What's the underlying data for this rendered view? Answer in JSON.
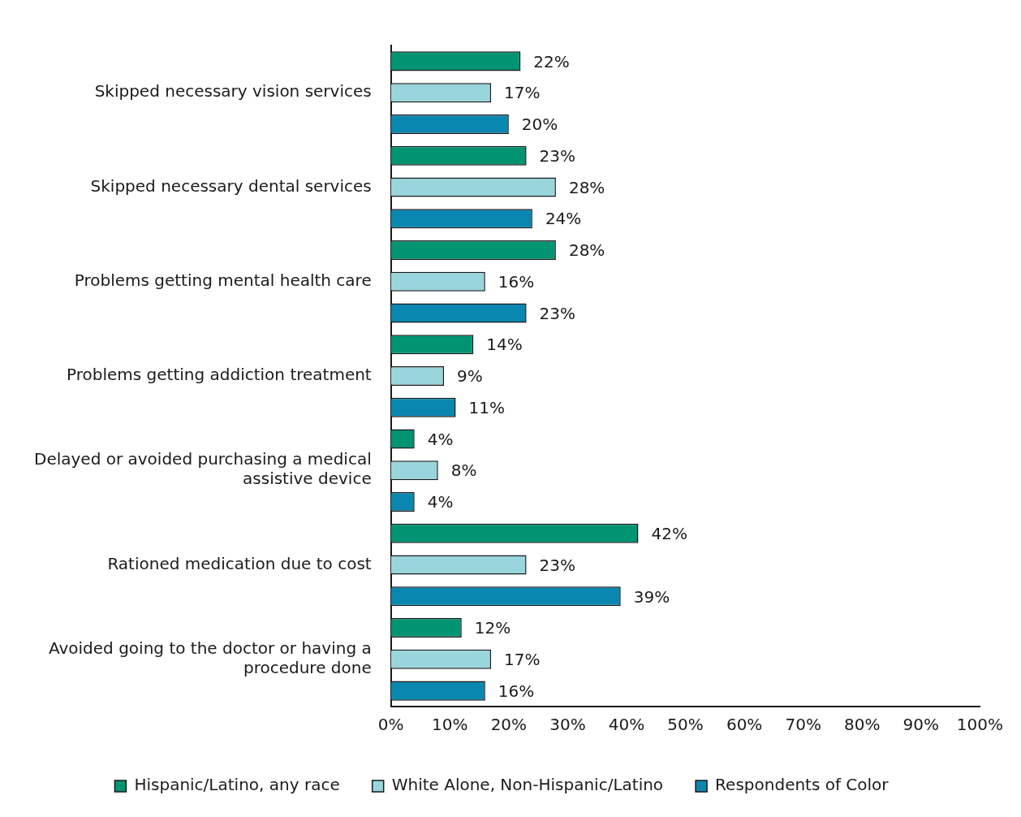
{
  "chart_data": {
    "type": "bar",
    "orientation": "horizontal",
    "categories": [
      "Skipped necessary vision services",
      "Skipped necessary dental services",
      "Problems getting mental health care",
      "Problems getting addiction treatment",
      "Delayed or avoided purchasing a medical assistive device",
      "Rationed medication due to cost",
      "Avoided going to the doctor or having a procedure done"
    ],
    "series": [
      {
        "name": "Hispanic/Latino, any race",
        "color": "#009473",
        "values": [
          22,
          23,
          28,
          14,
          4,
          42,
          12
        ],
        "value_labels": [
          "22%",
          "23%",
          "28%",
          "14%",
          "4%",
          "42%",
          "12%"
        ]
      },
      {
        "name": "White Alone, Non-Hispanic/Latino",
        "color": "#99d5dc",
        "values": [
          17,
          28,
          16,
          9,
          8,
          23,
          17
        ],
        "value_labels": [
          "17%",
          "28%",
          "16%",
          "9%",
          "8%",
          "23%",
          "17%"
        ]
      },
      {
        "name": "Respondents of Color",
        "color": "#0a87b1",
        "values": [
          20,
          24,
          23,
          11,
          4,
          39,
          16
        ],
        "value_labels": [
          "20%",
          "24%",
          "23%",
          "11%",
          "4%",
          "39%",
          "16%"
        ]
      }
    ],
    "xlim": [
      0,
      100
    ],
    "xticks": [
      {
        "value": 0,
        "label": "0%"
      },
      {
        "value": 10,
        "label": "10%"
      },
      {
        "value": 20,
        "label": "20%"
      },
      {
        "value": 30,
        "label": "30%"
      },
      {
        "value": 40,
        "label": "40%"
      },
      {
        "value": 50,
        "label": "50%"
      },
      {
        "value": 60,
        "label": "60%"
      },
      {
        "value": 70,
        "label": "70%"
      },
      {
        "value": 80,
        "label": "80%"
      },
      {
        "value": 90,
        "label": "90%"
      },
      {
        "value": 100,
        "label": "100%"
      }
    ],
    "grid": false,
    "legend": "bottom"
  }
}
